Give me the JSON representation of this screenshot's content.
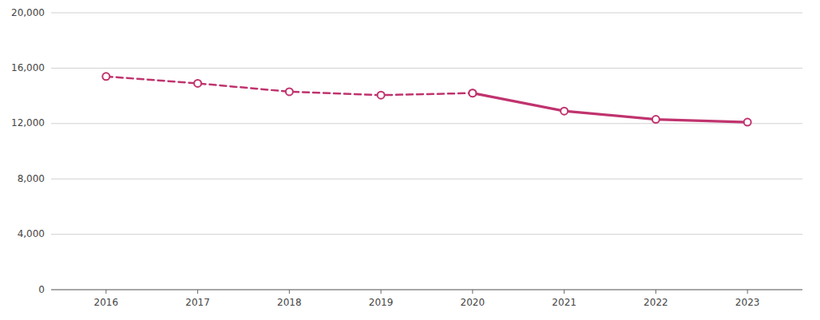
{
  "chart_data": {
    "type": "line",
    "x": [
      2016,
      2017,
      2018,
      2019,
      2020,
      2021,
      2022,
      2023
    ],
    "series": [
      {
        "color": "#c0336e",
        "line_style": "dashed",
        "marker": "circle",
        "values": [
          15400,
          14900,
          14300,
          14050,
          14200,
          null,
          null,
          null
        ]
      },
      {
        "color": "#c0336e",
        "line_style": "solid",
        "marker": "circle",
        "values": [
          null,
          null,
          null,
          null,
          14200,
          12900,
          12300,
          12100
        ]
      }
    ],
    "xlim": [
      2015.4,
      2023.6
    ],
    "xticks": [
      2016,
      2017,
      2018,
      2019,
      2020,
      2021,
      2022,
      2023
    ],
    "ylim": [
      0,
      20000
    ],
    "yticks": [
      0,
      {
        "value": 4000,
        "label": "4,000"
      },
      {
        "value": 8000,
        "label": "8,000"
      },
      {
        "value": 12000,
        "label": "12,000"
      },
      {
        "value": 16000,
        "label": "16,000"
      },
      {
        "value": 20000,
        "label": "20,000"
      }
    ],
    "grid": true
  }
}
